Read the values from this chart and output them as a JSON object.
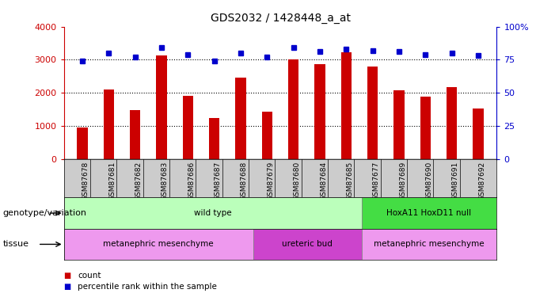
{
  "title": "GDS2032 / 1428448_a_at",
  "samples": [
    "GSM87678",
    "GSM87681",
    "GSM87682",
    "GSM87683",
    "GSM87686",
    "GSM87687",
    "GSM87688",
    "GSM87679",
    "GSM87680",
    "GSM87684",
    "GSM87685",
    "GSM87677",
    "GSM87689",
    "GSM87690",
    "GSM87691",
    "GSM87692"
  ],
  "counts": [
    950,
    2100,
    1480,
    3130,
    1920,
    1240,
    2450,
    1430,
    3000,
    2870,
    3230,
    2790,
    2080,
    1880,
    2180,
    1520
  ],
  "percentile_ranks": [
    74,
    80,
    77,
    84,
    79,
    74,
    80,
    77,
    84,
    81,
    83,
    82,
    81,
    79,
    80,
    78
  ],
  "ylim_left": [
    0,
    4000
  ],
  "ylim_right": [
    0,
    100
  ],
  "yticks_left": [
    0,
    1000,
    2000,
    3000,
    4000
  ],
  "yticks_right": [
    0,
    25,
    50,
    75,
    100
  ],
  "bar_color": "#cc0000",
  "dot_color": "#0000cc",
  "genotype_groups": [
    {
      "label": "wild type",
      "start": 0,
      "end": 11,
      "color": "#bbffbb"
    },
    {
      "label": "HoxA11 HoxD11 null",
      "start": 11,
      "end": 16,
      "color": "#44dd44"
    }
  ],
  "tissue_groups": [
    {
      "label": "metanephric mesenchyme",
      "start": 0,
      "end": 7,
      "color": "#ee99ee"
    },
    {
      "label": "ureteric bud",
      "start": 7,
      "end": 11,
      "color": "#cc44cc"
    },
    {
      "label": "metanephric mesenchyme",
      "start": 11,
      "end": 16,
      "color": "#ee99ee"
    }
  ],
  "genotype_label": "genotype/variation",
  "tissue_label": "tissue",
  "legend_count_color": "#cc0000",
  "legend_pct_color": "#0000cc",
  "tick_area_color": "#cccccc",
  "dot_size": 4,
  "bar_width": 0.4
}
